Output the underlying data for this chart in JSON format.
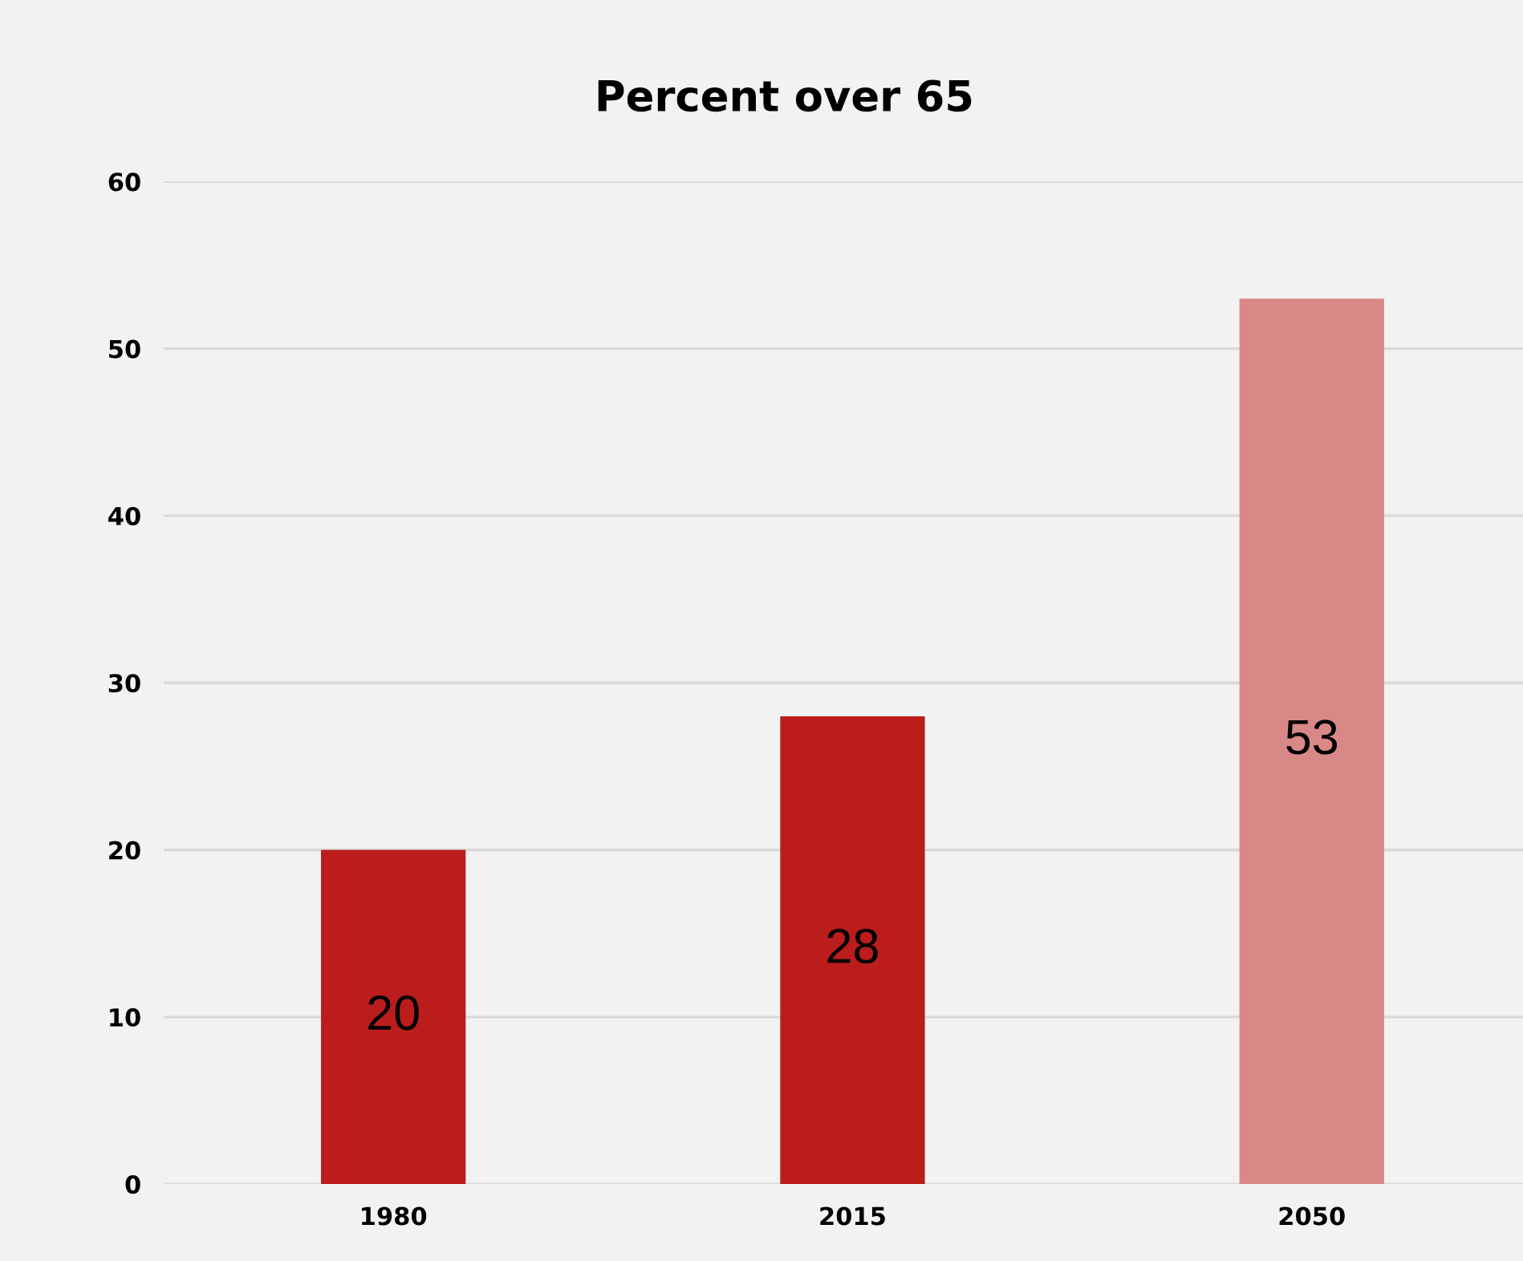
{
  "chart_data": {
    "type": "bar",
    "title": "Percent over 65",
    "categories": [
      "1980",
      "2015",
      "2050"
    ],
    "values": [
      20,
      28,
      53
    ],
    "colors": [
      "#bb1c1c",
      "#bb1c1c",
      "#d98888"
    ],
    "ylim": [
      0,
      60
    ],
    "yticks": [
      0,
      10,
      20,
      30,
      40,
      50,
      60
    ],
    "grid": "y",
    "data_labels": true
  }
}
